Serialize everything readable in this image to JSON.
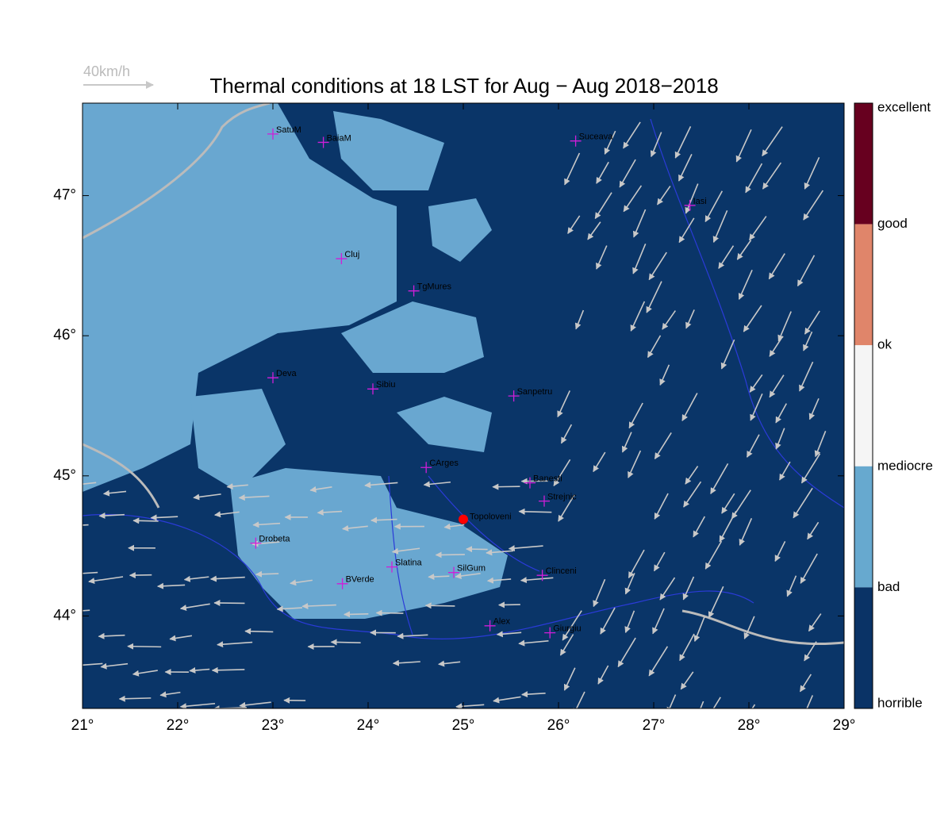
{
  "chart_data": {
    "type": "map",
    "title": "Thermal conditions at 18 LST for Aug − Aug  2018−2018",
    "wind_legend": "40km/h",
    "xlim": [
      21,
      29
    ],
    "ylim": [
      43.34,
      47.66
    ],
    "xticks": [
      {
        "value": 21,
        "label": "21°"
      },
      {
        "value": 22,
        "label": "22°"
      },
      {
        "value": 23,
        "label": "23°"
      },
      {
        "value": 24,
        "label": "24°"
      },
      {
        "value": 25,
        "label": "25°"
      },
      {
        "value": 26,
        "label": "26°"
      },
      {
        "value": 27,
        "label": "27°"
      },
      {
        "value": 28,
        "label": "28°"
      },
      {
        "value": 29,
        "label": "29°"
      }
    ],
    "yticks": [
      {
        "value": 44,
        "label": "44°"
      },
      {
        "value": 45,
        "label": "45°"
      },
      {
        "value": 46,
        "label": "46°"
      },
      {
        "value": 47,
        "label": "47°"
      }
    ],
    "colorbar": {
      "labels": [
        "excellent",
        "good",
        "ok",
        "mediocre",
        "bad",
        "horrible"
      ],
      "colors": [
        "#67001f",
        "#e0856a",
        "#f5f5f5",
        "#67a9cf",
        "#0a3366"
      ]
    },
    "cities": [
      {
        "name": "SatuM",
        "lon": 23.0,
        "lat": 47.44
      },
      {
        "name": "BaiaM",
        "lon": 23.53,
        "lat": 47.38
      },
      {
        "name": "Suceava",
        "lon": 26.18,
        "lat": 47.39
      },
      {
        "name": "Iasi",
        "lon": 27.38,
        "lat": 46.93
      },
      {
        "name": "Cluj",
        "lon": 23.72,
        "lat": 46.55
      },
      {
        "name": "TgMures",
        "lon": 24.48,
        "lat": 46.32
      },
      {
        "name": "Deva",
        "lon": 23.0,
        "lat": 45.7
      },
      {
        "name": "Sibiu",
        "lon": 24.05,
        "lat": 45.62
      },
      {
        "name": "Sanpetru",
        "lon": 25.53,
        "lat": 45.57
      },
      {
        "name": "CArges",
        "lon": 24.61,
        "lat": 45.06
      },
      {
        "name": "Banesti",
        "lon": 25.7,
        "lat": 44.95
      },
      {
        "name": "Strejnic",
        "lon": 25.85,
        "lat": 44.82
      },
      {
        "name": "Drobeta",
        "lon": 22.82,
        "lat": 44.52
      },
      {
        "name": "Slatina",
        "lon": 24.25,
        "lat": 44.35
      },
      {
        "name": "SilGum",
        "lon": 24.9,
        "lat": 44.31
      },
      {
        "name": "BVerde",
        "lon": 23.73,
        "lat": 44.23
      },
      {
        "name": "Clinceni",
        "lon": 25.83,
        "lat": 44.29
      },
      {
        "name": "Alex",
        "lon": 25.28,
        "lat": 43.93
      },
      {
        "name": "Giurgiu",
        "lon": 25.91,
        "lat": 43.88
      }
    ],
    "highlight": {
      "name": "Topoloveni",
      "lon": 25.0,
      "lat": 44.69
    }
  }
}
